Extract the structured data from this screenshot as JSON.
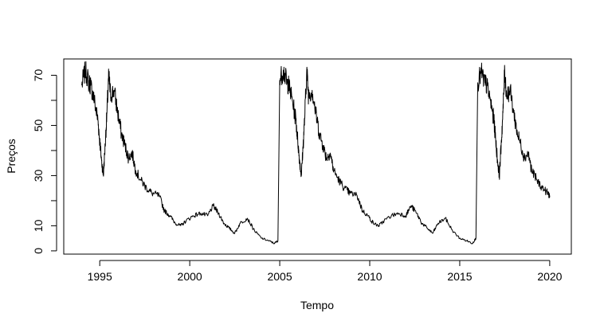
{
  "chart_data": {
    "type": "line",
    "xlabel": "Tempo",
    "ylabel": "Preços",
    "xlim": [
      1993.0,
      2021.2
    ],
    "ylim": [
      -1.3,
      76.5
    ],
    "x_ticks": [
      1995,
      2000,
      2005,
      2010,
      2015,
      2020
    ],
    "x_tick_labels": [
      "1995",
      "2000",
      "2005",
      "2010",
      "2015",
      "2020"
    ],
    "y_ticks": [
      0,
      10,
      20,
      30,
      40,
      50,
      60,
      70
    ],
    "y_tick_labels": [
      "0",
      "10",
      "",
      "30",
      "",
      "50",
      "",
      "70"
    ],
    "grid": false,
    "legend": "none",
    "series": [
      {
        "color": "#000000",
        "segments": [
          {
            "x": [
              1994.0,
              1994.2,
              1994.4,
              1994.5,
              1994.7,
              1994.9,
              1995.0,
              1995.1,
              1995.2,
              1995.3,
              1995.4,
              1995.5,
              1995.6,
              1995.8,
              1996.0,
              1996.2,
              1996.4,
              1996.6,
              1996.8,
              1997.0,
              1997.3,
              1997.6,
              1997.9,
              1998.3,
              1998.6,
              1998.9,
              1999.2,
              1999.5,
              1999.8,
              2000.2,
              2000.6,
              2001.0,
              2001.3,
              2001.6,
              2001.9,
              2002.2,
              2002.5,
              2002.8,
              2003.2,
              2003.6,
              2004.0,
              2004.4,
              2004.7,
              2004.9
            ],
            "y": [
              66,
              72,
              67,
              66,
              60,
              52,
              44,
              36,
              30,
              42,
              55,
              70,
              62,
              64,
              55,
              47,
              42,
              37,
              39,
              32,
              28,
              25,
              23,
              22,
              16,
              14,
              11,
              10,
              12,
              14,
              15,
              14,
              18,
              15,
              11,
              9,
              7,
              11,
              13,
              8,
              5,
              4,
              3,
              4
            ]
          },
          {
            "x": [
              2004.9,
              2005.0,
              2005.2,
              2005.4,
              2005.5,
              2005.7,
              2005.9,
              2006.0,
              2006.1,
              2006.2,
              2006.3,
              2006.4,
              2006.5,
              2006.6,
              2006.8,
              2007.0,
              2007.2,
              2007.4,
              2007.6,
              2007.8,
              2008.0,
              2008.3,
              2008.6,
              2008.9,
              2009.3,
              2009.6,
              2009.9,
              2010.2,
              2010.5,
              2010.8,
              2011.2,
              2011.6,
              2012.0,
              2012.3,
              2012.6,
              2012.9,
              2013.2,
              2013.5,
              2013.8,
              2014.2,
              2014.6,
              2015.0,
              2015.4,
              2015.7,
              2015.9
            ],
            "y": [
              4,
              68,
              72,
              67,
              66,
              60,
              52,
              44,
              36,
              30,
              42,
              55,
              72,
              62,
              64,
              55,
              47,
              42,
              37,
              39,
              32,
              28,
              25,
              23,
              22,
              16,
              14,
              11,
              10,
              12,
              14,
              15,
              14,
              18,
              15,
              11,
              9,
              7,
              11,
              13,
              8,
              5,
              4,
              3,
              5
            ]
          },
          {
            "x": [
              2015.9,
              2016.0,
              2016.2,
              2016.4,
              2016.5,
              2016.7,
              2016.9,
              2017.0,
              2017.1,
              2017.2,
              2017.3,
              2017.4,
              2017.5,
              2017.6,
              2017.8,
              2018.0,
              2018.2,
              2018.4,
              2018.6,
              2018.8,
              2019.0,
              2019.3,
              2019.6,
              2019.9,
              2020.0
            ],
            "y": [
              5,
              67,
              71,
              67,
              66,
              60,
              52,
              44,
              36,
              30,
              42,
              55,
              72,
              62,
              64,
              55,
              47,
              42,
              37,
              39,
              32,
              28,
              25,
              23,
              22
            ]
          }
        ]
      }
    ]
  }
}
